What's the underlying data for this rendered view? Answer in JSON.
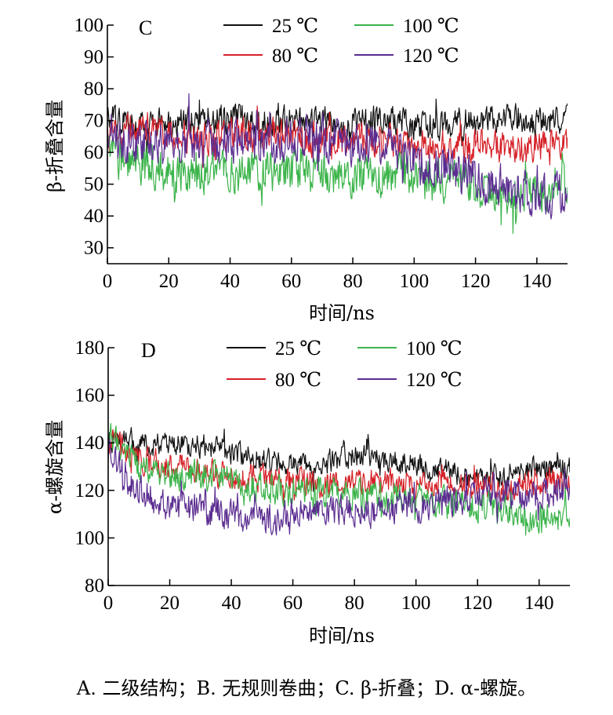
{
  "caption": "A. 二级结构；B. 无规则卷曲；C. β-折叠；D. α-螺旋。",
  "chart_data": [
    {
      "type": "line",
      "panel_label": "C",
      "xlabel": "时间/ns",
      "ylabel": "β-折叠含量",
      "xlim": [
        0,
        150
      ],
      "ylim": [
        25,
        100
      ],
      "xticks": [
        0,
        20,
        40,
        60,
        80,
        100,
        120,
        140
      ],
      "yticks": [
        30,
        40,
        50,
        60,
        70,
        80,
        90,
        100
      ],
      "legend_placement": "top-right, two columns",
      "series": [
        {
          "name": "25 ℃",
          "color": "#111111",
          "noise": 4,
          "x": [
            0,
            10,
            20,
            30,
            40,
            50,
            60,
            70,
            80,
            90,
            100,
            110,
            120,
            130,
            140,
            150
          ],
          "y": [
            70,
            69,
            69,
            70,
            71,
            70,
            70,
            70,
            69,
            71,
            68,
            69,
            70,
            71,
            69,
            70
          ]
        },
        {
          "name": "80 ℃",
          "color": "#d62128",
          "noise": 4.5,
          "x": [
            0,
            10,
            20,
            30,
            40,
            50,
            60,
            70,
            80,
            90,
            100,
            110,
            120,
            130,
            140,
            150
          ],
          "y": [
            66,
            67,
            66,
            65,
            65,
            66,
            65,
            64,
            64,
            64,
            62,
            62,
            62,
            61,
            62,
            63
          ]
        },
        {
          "name": "100 ℃",
          "color": "#3cb44b",
          "noise": 6,
          "x": [
            0,
            10,
            20,
            30,
            40,
            50,
            60,
            70,
            80,
            90,
            100,
            110,
            120,
            130,
            140,
            150
          ],
          "y": [
            60,
            56,
            55,
            54,
            54,
            54,
            54,
            53,
            53,
            53,
            52,
            50,
            48,
            46,
            47,
            50
          ]
        },
        {
          "name": "120 ℃",
          "color": "#5b2d90",
          "noise": 6,
          "x": [
            0,
            10,
            20,
            30,
            40,
            50,
            60,
            70,
            80,
            90,
            100,
            110,
            120,
            130,
            140,
            150
          ],
          "y": [
            64,
            63,
            63,
            63,
            64,
            64,
            64,
            65,
            63,
            62,
            58,
            55,
            52,
            49,
            47,
            47
          ]
        }
      ]
    },
    {
      "type": "line",
      "panel_label": "D",
      "xlabel": "时间/ns",
      "ylabel": "α-螺旋含量",
      "xlim": [
        0,
        150
      ],
      "ylim": [
        80,
        180
      ],
      "xticks": [
        0,
        20,
        40,
        60,
        80,
        100,
        120,
        140
      ],
      "yticks": [
        80,
        100,
        120,
        140,
        160,
        180
      ],
      "legend_placement": "top-right, two columns",
      "series": [
        {
          "name": "25 ℃",
          "color": "#111111",
          "noise": 4.5,
          "x": [
            0,
            5,
            10,
            20,
            30,
            40,
            50,
            60,
            70,
            80,
            90,
            100,
            110,
            120,
            130,
            140,
            150
          ],
          "y": [
            140,
            142,
            140,
            139,
            139,
            136,
            133,
            131,
            132,
            134,
            133,
            131,
            128,
            125,
            126,
            129,
            130
          ]
        },
        {
          "name": "80 ℃",
          "color": "#d62128",
          "noise": 5,
          "x": [
            0,
            5,
            10,
            20,
            30,
            40,
            50,
            60,
            70,
            80,
            90,
            100,
            110,
            120,
            130,
            140,
            150
          ],
          "y": [
            141,
            138,
            133,
            130,
            128,
            126,
            125,
            124,
            122,
            123,
            124,
            123,
            123,
            122,
            121,
            124,
            124
          ]
        },
        {
          "name": "100 ℃",
          "color": "#3cb44b",
          "noise": 5.5,
          "x": [
            0,
            5,
            10,
            20,
            30,
            40,
            50,
            60,
            70,
            80,
            90,
            100,
            110,
            120,
            130,
            140,
            150
          ],
          "y": [
            143,
            137,
            130,
            126,
            127,
            124,
            121,
            120,
            120,
            118,
            118,
            117,
            114,
            113,
            112,
            109,
            108
          ]
        },
        {
          "name": "120 ℃",
          "color": "#5b2d90",
          "noise": 6,
          "x": [
            0,
            5,
            10,
            20,
            30,
            40,
            50,
            60,
            70,
            80,
            90,
            100,
            110,
            120,
            130,
            140,
            150
          ],
          "y": [
            136,
            128,
            120,
            113,
            112,
            110,
            106,
            110,
            112,
            112,
            112,
            114,
            115,
            117,
            118,
            119,
            119
          ]
        }
      ]
    }
  ]
}
